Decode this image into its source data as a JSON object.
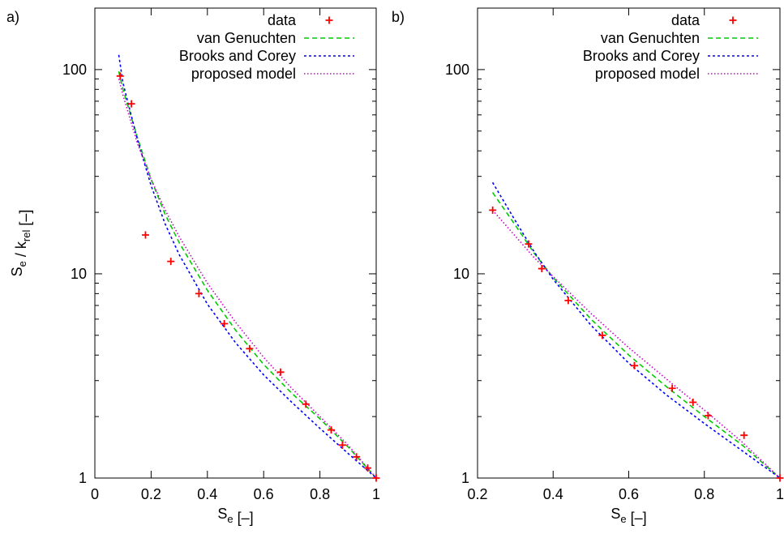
{
  "figure": {
    "panels": [
      "a)",
      "b)"
    ]
  },
  "chart_data": [
    {
      "panel_label": "a)",
      "type": "scatter",
      "xlabel": "S_e [–]",
      "ylabel": "S_e / k_rel [–]",
      "xlim": [
        0,
        1
      ],
      "ylim": [
        1,
        200
      ],
      "y_scale": "log",
      "x_ticks": [
        "0",
        "0.2",
        "0.4",
        "0.6",
        "0.8",
        "1"
      ],
      "y_ticks": [
        "1",
        "10",
        "100"
      ],
      "legend_position": "top-right",
      "series": [
        {
          "name": "data",
          "kind": "points",
          "color": "#ff0000",
          "x": [
            0.09,
            0.13,
            0.18,
            0.27,
            0.37,
            0.46,
            0.55,
            0.66,
            0.75,
            0.84,
            0.88,
            0.93,
            0.97,
            1.0
          ],
          "y": [
            93,
            68,
            15.5,
            11.5,
            8.0,
            5.7,
            4.3,
            3.3,
            2.3,
            1.72,
            1.45,
            1.27,
            1.12,
            1.0
          ]
        },
        {
          "name": "van Genuchten",
          "kind": "line",
          "color": "#00cc00",
          "dash": "6,4",
          "x": [
            0.085,
            0.1,
            0.15,
            0.2,
            0.25,
            0.3,
            0.4,
            0.5,
            0.6,
            0.7,
            0.8,
            0.9,
            1.0
          ],
          "y": [
            98,
            80,
            47,
            29,
            19.5,
            14.2,
            8.3,
            5.3,
            3.6,
            2.6,
            1.95,
            1.42,
            1.0
          ]
        },
        {
          "name": "Brooks and Corey",
          "kind": "line",
          "color": "#0000ff",
          "dash": "3,3",
          "x": [
            0.085,
            0.1,
            0.15,
            0.2,
            0.25,
            0.3,
            0.4,
            0.5,
            0.6,
            0.7,
            0.8,
            0.9,
            1.0
          ],
          "y": [
            118,
            86,
            46,
            27,
            17.5,
            12.4,
            7.1,
            4.6,
            3.2,
            2.35,
            1.75,
            1.32,
            1.0
          ]
        },
        {
          "name": "proposed model",
          "kind": "line",
          "color": "#cc00cc",
          "dash": "1.5,2.5",
          "x": [
            0.085,
            0.1,
            0.15,
            0.2,
            0.25,
            0.3,
            0.4,
            0.5,
            0.6,
            0.7,
            0.8,
            0.9,
            1.0
          ],
          "y": [
            90,
            75,
            44,
            29,
            20.5,
            15.2,
            9.0,
            5.8,
            3.9,
            2.75,
            2.0,
            1.45,
            1.0
          ]
        }
      ]
    },
    {
      "panel_label": "b)",
      "type": "scatter",
      "xlabel": "S_e [–]",
      "ylabel": "",
      "xlim": [
        0.2,
        1
      ],
      "ylim": [
        1,
        200
      ],
      "y_scale": "log",
      "x_ticks": [
        "0.2",
        "0.4",
        "0.6",
        "0.8",
        "1"
      ],
      "y_ticks": [
        "1",
        "10",
        "100"
      ],
      "legend_position": "top-right",
      "series": [
        {
          "name": "data",
          "kind": "points",
          "color": "#ff0000",
          "x": [
            0.24,
            0.335,
            0.37,
            0.44,
            0.53,
            0.615,
            0.715,
            0.77,
            0.81,
            0.905,
            1.0
          ],
          "y": [
            20.5,
            14.0,
            10.6,
            7.4,
            5.0,
            3.55,
            2.75,
            2.35,
            2.02,
            1.62,
            1.0
          ]
        },
        {
          "name": "van Genuchten",
          "kind": "line",
          "color": "#00cc00",
          "dash": "6,4",
          "x": [
            0.24,
            0.3,
            0.35,
            0.4,
            0.5,
            0.6,
            0.7,
            0.8,
            0.9,
            1.0
          ],
          "y": [
            25,
            17.3,
            12.6,
            9.6,
            6.0,
            4.0,
            2.8,
            2.0,
            1.45,
            1.0
          ]
        },
        {
          "name": "Brooks and Corey",
          "kind": "line",
          "color": "#0000ff",
          "dash": "3,3",
          "x": [
            0.24,
            0.3,
            0.35,
            0.4,
            0.5,
            0.6,
            0.7,
            0.8,
            0.9,
            1.0
          ],
          "y": [
            28,
            18.2,
            12.8,
            9.4,
            5.6,
            3.65,
            2.55,
            1.85,
            1.36,
            1.0
          ]
        },
        {
          "name": "proposed model",
          "kind": "line",
          "color": "#cc00cc",
          "dash": "1.5,2.5",
          "x": [
            0.24,
            0.3,
            0.35,
            0.4,
            0.5,
            0.6,
            0.7,
            0.8,
            0.9,
            1.0
          ],
          "y": [
            20.5,
            15.3,
            12.0,
            9.7,
            6.4,
            4.35,
            3.05,
            2.15,
            1.5,
            1.0
          ]
        }
      ]
    }
  ]
}
